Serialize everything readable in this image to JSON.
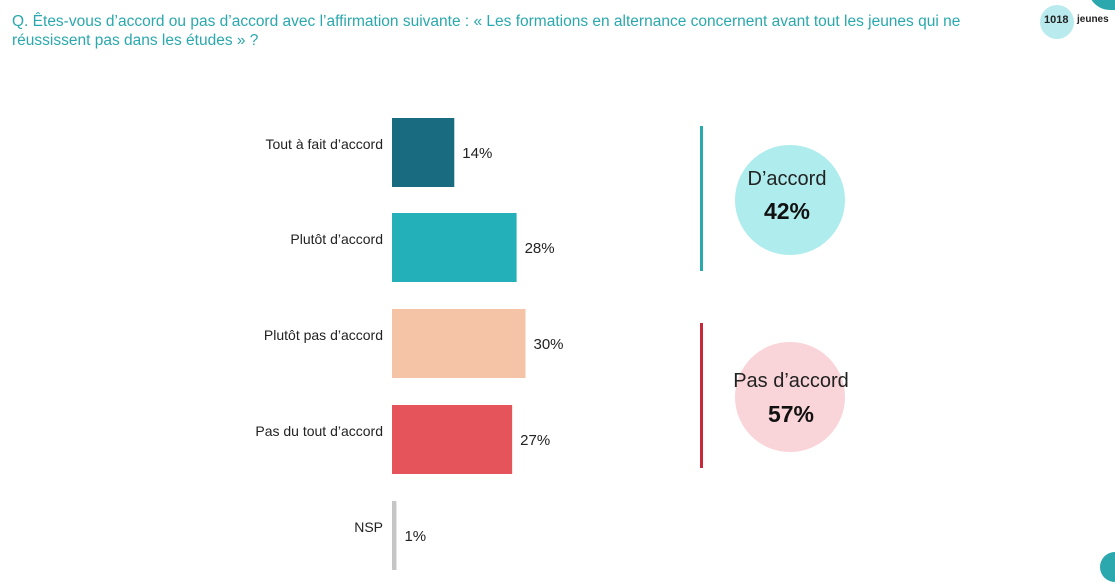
{
  "question": "Q. Êtes-vous d’accord ou pas d’accord avec l’affirmation suivante : « Les formations en alternance concernent avant tout les jeunes qui ne réussissent pas dans les études » ?",
  "badge": {
    "count": "1018",
    "unit": "jeunes"
  },
  "colors": {
    "accent": "#2aa8ad",
    "tout_a_fait": "#196b80",
    "plutot": "#23b0b8",
    "plutot_pas": "#f5c3a6",
    "pas_du_tout": "#e5535b",
    "nsp": "#c6c6c6",
    "agree_circle": "#aeeced",
    "disagree_circle": "#f9d4d8",
    "agree_line": "#2aa8ad",
    "disagree_line": "#c8293a"
  },
  "chart_data": {
    "type": "bar",
    "orientation": "horizontal",
    "categories": [
      "Tout à fait d’accord",
      "Plutôt d’accord",
      "Plutôt pas d’accord",
      "Pas du tout d’accord",
      "NSP"
    ],
    "values": [
      14,
      28,
      30,
      27,
      1
    ],
    "value_labels": [
      "14%",
      "28%",
      "30%",
      "27%",
      "1%"
    ],
    "unit": "%"
  },
  "summary": {
    "agree": {
      "label": "D’accord",
      "value": "42%"
    },
    "disagree": {
      "label": "Pas d’accord",
      "value": "57%"
    }
  }
}
